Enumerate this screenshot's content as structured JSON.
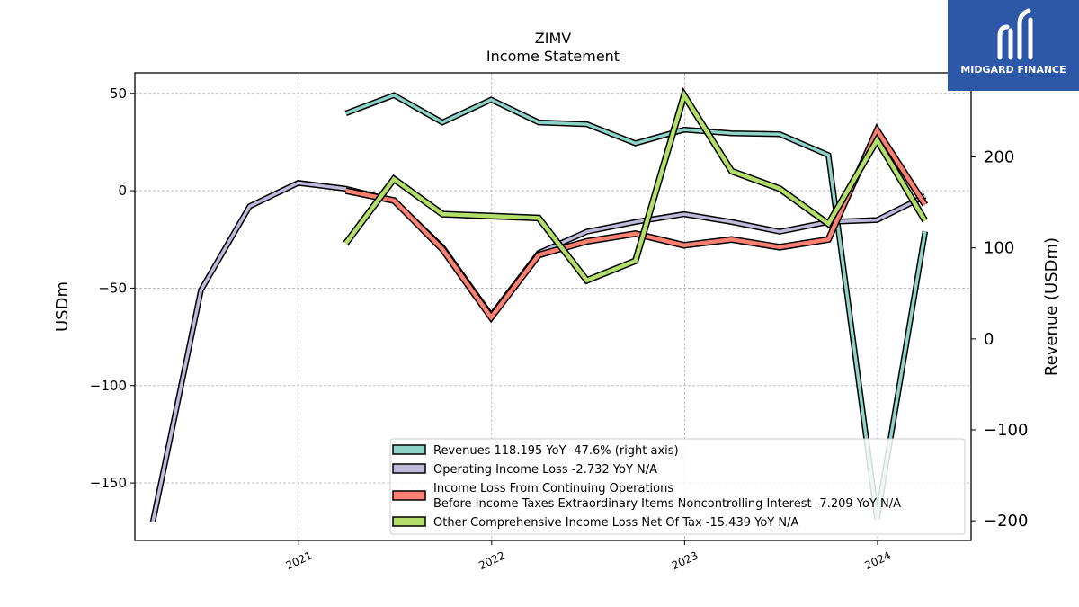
{
  "logo": {
    "text": "MIDGARD FINANCE"
  },
  "chart_data": {
    "type": "line",
    "title": "ZIMV",
    "subtitle": "Income Statement",
    "ylabel": "USDm",
    "ylabel_right": "Revenue (USDm)",
    "ylim": [
      -179.5,
      60.5
    ],
    "ylim_right": [
      -221.6,
      292.5
    ],
    "yticks": [
      50,
      0,
      -50,
      -100,
      -150
    ],
    "yticks_right": [
      200,
      100,
      0,
      -100,
      -200
    ],
    "xlim": [
      "2020-02-26",
      "2024-06-26"
    ],
    "xticks": [
      "2021",
      "2022",
      "2023",
      "2024"
    ],
    "xtick_dates": [
      "2021-01-01",
      "2022-01-01",
      "2023-01-01",
      "2024-01-01"
    ],
    "grid": true,
    "legend_position": "lower-right",
    "series": [
      {
        "name": "Revenues  118.195 YoY -47.6% (right axis)",
        "axis": "right",
        "color": "#8dd3c7",
        "x": [
          "2021-03-31",
          "2021-06-30",
          "2021-09-30",
          "2021-12-31",
          "2022-03-31",
          "2022-06-30",
          "2022-09-30",
          "2022-12-31",
          "2023-03-31",
          "2023-06-30",
          "2023-09-30",
          "2023-12-31",
          "2024-03-31"
        ],
        "y": [
          248,
          268,
          238,
          263,
          238,
          236,
          215,
          230,
          226,
          225,
          202,
          -198,
          118.195
        ]
      },
      {
        "name": "Operating Income Loss  -2.732 YoY N/A",
        "axis": "left",
        "color": "#bebada",
        "x": [
          "2020-03-31",
          "2020-06-30",
          "2020-09-30",
          "2020-12-31",
          "2021-03-31",
          "2021-06-30",
          "2021-09-30",
          "2021-12-31",
          "2022-03-31",
          "2022-06-30",
          "2022-09-30",
          "2022-12-31",
          "2023-03-31",
          "2023-06-30",
          "2023-09-30",
          "2023-12-31",
          "2024-03-31"
        ],
        "y": [
          -170,
          -51,
          -8,
          4,
          1,
          -5,
          -29,
          -64,
          -32,
          -21,
          -16,
          -12,
          -16,
          -21,
          -16,
          -15,
          -2.732
        ]
      },
      {
        "name": "Income Loss From Continuing Operations\nBefore Income Taxes Extraordinary Items Noncontrolling Interest  -7.209 YoY N/A",
        "axis": "left",
        "color": "#fb8072",
        "x": [
          "2021-03-31",
          "2021-06-30",
          "2021-09-30",
          "2021-12-31",
          "2022-03-31",
          "2022-06-30",
          "2022-09-30",
          "2022-12-31",
          "2023-03-31",
          "2023-06-30",
          "2023-09-30",
          "2023-12-31",
          "2024-03-31"
        ],
        "y": [
          0,
          -5,
          -30,
          -65,
          -33,
          -26,
          -22,
          -28,
          -25,
          -29,
          -25,
          31,
          -7.209
        ]
      },
      {
        "name": "Other Comprehensive Income Loss Net Of Tax  -15.439 YoY N/A",
        "axis": "left",
        "color": "#b3de69",
        "x": [
          "2021-03-31",
          "2021-06-30",
          "2021-09-30",
          "2021-12-31",
          "2022-03-31",
          "2022-06-30",
          "2022-09-30",
          "2022-12-31",
          "2023-03-31",
          "2023-06-30",
          "2023-09-30",
          "2023-12-31",
          "2024-03-31"
        ],
        "y": [
          -27,
          6,
          -12,
          -13,
          -14,
          -46,
          -36,
          49,
          10,
          1,
          -17,
          26,
          -15.439
        ]
      }
    ]
  }
}
